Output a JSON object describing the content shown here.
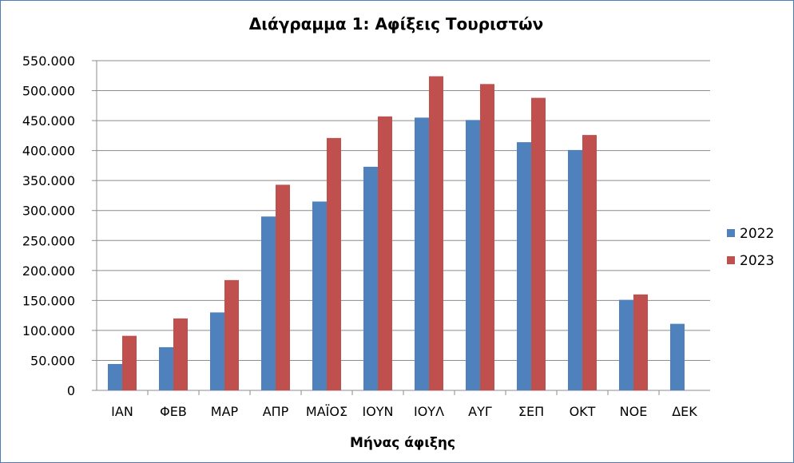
{
  "chart_data": {
    "type": "bar",
    "title": "Διάγραμμα 1: Αφίξεις Τουριστών",
    "xlabel": "Μήνας άφιξης",
    "ylabel": "",
    "ylim": [
      0,
      550000
    ],
    "yticks": [
      0,
      50000,
      100000,
      150000,
      200000,
      250000,
      300000,
      350000,
      400000,
      450000,
      500000,
      550000
    ],
    "ytick_labels": [
      "0",
      "50.000",
      "100.000",
      "150.000",
      "200.000",
      "250.000",
      "300.000",
      "350.000",
      "400.000",
      "450.000",
      "500.000",
      "550.000"
    ],
    "categories": [
      "ΙΑΝ",
      "ΦΕΒ",
      "ΜΑΡ",
      "ΑΠΡ",
      "ΜΑΪΟΣ",
      "ΙΟΥΝ",
      "ΙΟΥΛ",
      "ΑΥΓ",
      "ΣΕΠ",
      "ΟΚΤ",
      "ΝΟΕ",
      "ΔΕΚ"
    ],
    "series": [
      {
        "name": "2022",
        "color": "#4f81bd",
        "values": [
          44000,
          72000,
          130000,
          290000,
          315000,
          373000,
          455000,
          451000,
          414000,
          401000,
          151000,
          111000
        ]
      },
      {
        "name": "2023",
        "color": "#c0504d",
        "values": [
          91000,
          120000,
          184000,
          343000,
          421000,
          457000,
          524000,
          511000,
          488000,
          426000,
          160000,
          null
        ]
      }
    ],
    "grid": true,
    "legend_position": "right"
  }
}
